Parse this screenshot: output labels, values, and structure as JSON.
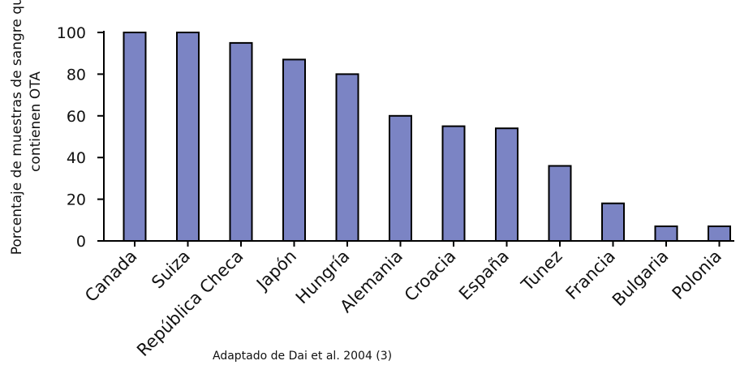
{
  "chart_data": {
    "type": "bar",
    "title": "",
    "ylabel_lines": [
      "Porcentaje de muestras de sangre que",
      "contienen OTA"
    ],
    "xlabel": "",
    "ylim": [
      0,
      100
    ],
    "yticks": [
      "0",
      "20",
      "40",
      "60",
      "80",
      "100"
    ],
    "categories": [
      "Canada",
      "Suiza",
      "República Checa",
      "Japón",
      "Hungría",
      "Alemania",
      "Croacia",
      "España",
      "Tunez",
      "Francia",
      "Bulgaria",
      "Polonia"
    ],
    "values": [
      100,
      100,
      95,
      87,
      80,
      60,
      55,
      54,
      36,
      18,
      7,
      7
    ],
    "bar_color": "#7b84c4",
    "grid": false,
    "legend": "none"
  },
  "source_note": "Adaptado de Dai et al. 2004 (3)"
}
